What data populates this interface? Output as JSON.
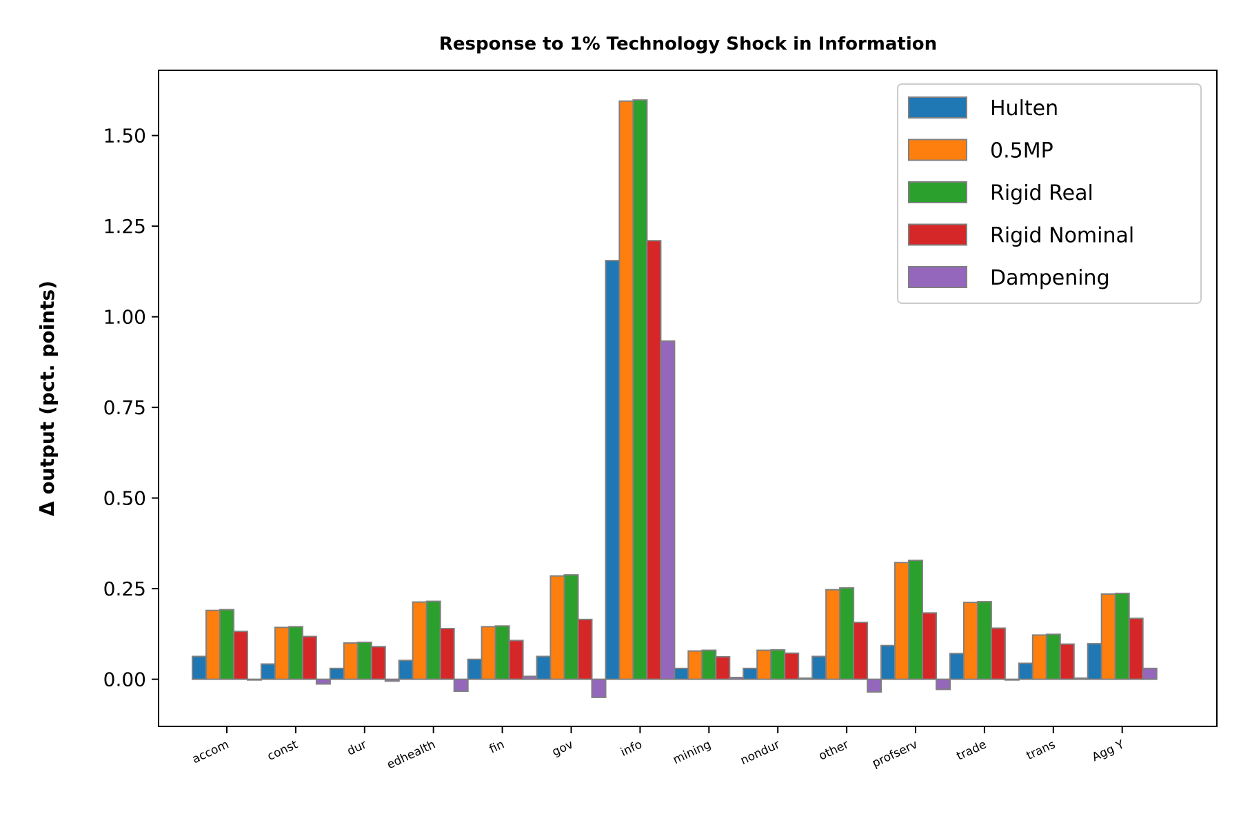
{
  "chart_data": {
    "type": "bar",
    "title": "Response to 1% Technology Shock in Information",
    "xlabel": "",
    "ylabel": "Δ output (pct. points)",
    "ylim": [
      -0.13,
      1.68
    ],
    "yticks": [
      "0.00",
      "0.25",
      "0.50",
      "0.75",
      "1.00",
      "1.25",
      "1.50"
    ],
    "ytick_values": [
      0,
      0.25,
      0.5,
      0.75,
      1.0,
      1.25,
      1.5
    ],
    "grid": false,
    "legend_position": "top-right",
    "categories": [
      "accom",
      "const",
      "dur",
      "edhealth",
      "fin",
      "gov",
      "info",
      "mining",
      "nondur",
      "other",
      "profserv",
      "trade",
      "trans",
      "Agg Y"
    ],
    "series": [
      {
        "name": "Hulten",
        "color": "#1f77b4",
        "values": [
          0.063,
          0.042,
          0.03,
          0.052,
          0.055,
          0.063,
          1.155,
          0.03,
          0.03,
          0.063,
          0.093,
          0.071,
          0.044,
          0.098
        ]
      },
      {
        "name": "0.5MP",
        "color": "#ff7f0e",
        "values": [
          0.19,
          0.143,
          0.1,
          0.213,
          0.145,
          0.285,
          1.595,
          0.078,
          0.08,
          0.247,
          0.322,
          0.212,
          0.122,
          0.235
        ]
      },
      {
        "name": "Rigid Real",
        "color": "#2ca02c",
        "values": [
          0.192,
          0.145,
          0.102,
          0.215,
          0.147,
          0.288,
          1.598,
          0.08,
          0.081,
          0.252,
          0.328,
          0.214,
          0.124,
          0.237
        ]
      },
      {
        "name": "Rigid Nominal",
        "color": "#d62728",
        "values": [
          0.132,
          0.118,
          0.09,
          0.14,
          0.107,
          0.165,
          1.21,
          0.062,
          0.072,
          0.157,
          0.183,
          0.141,
          0.097,
          0.168
        ]
      },
      {
        "name": "Dampening",
        "color": "#9467bd",
        "values": [
          -0.002,
          -0.013,
          -0.005,
          -0.033,
          0.008,
          -0.05,
          0.933,
          0.005,
          0.003,
          -0.035,
          -0.028,
          -0.002,
          0.003,
          0.03
        ]
      }
    ]
  }
}
